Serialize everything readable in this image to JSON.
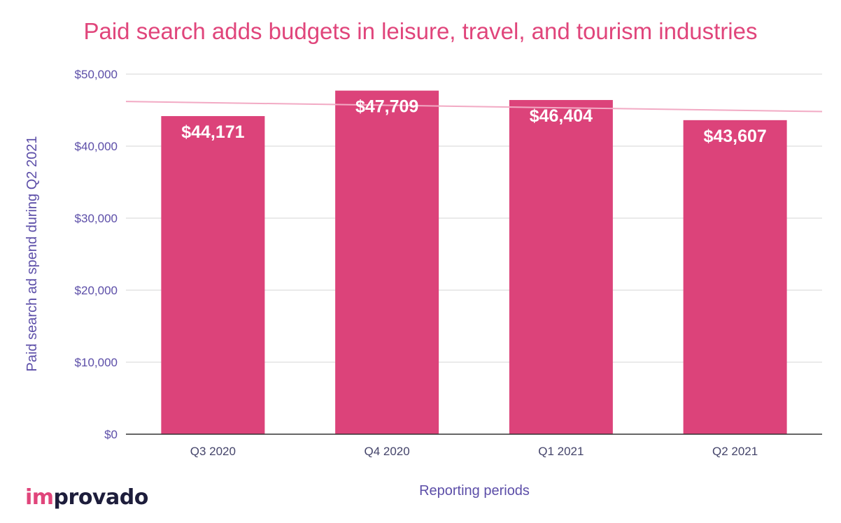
{
  "brand": {
    "logo_text": "improvado",
    "logo_accent_part": "im",
    "logo_rest_part": "provado"
  },
  "colors": {
    "title": "#e0457b",
    "bar": "#dc437a",
    "trendline": "#f2aac4",
    "axis_text": "#5c4ea8",
    "tick_text": "#44446a",
    "gridline": "#d6d6d6",
    "baseline": "#333333",
    "bar_label": "#ffffff"
  },
  "chart_data": {
    "type": "bar",
    "title": "Paid search adds budgets in leisure, travel, and tourism industries",
    "xlabel": "Reporting periods",
    "ylabel": "Paid search ad spend during Q2 2021",
    "categories": [
      "Q3 2020",
      "Q4 2020",
      "Q1 2021",
      "Q2 2021"
    ],
    "series": [
      {
        "values": [
          44171,
          47709,
          46404,
          43607
        ],
        "data_labels": [
          "$44,171",
          "$47,709",
          "$46,404",
          "$43,607"
        ]
      }
    ],
    "ylim": [
      0,
      50000
    ],
    "yticks": [
      0,
      10000,
      20000,
      30000,
      40000,
      50000
    ],
    "ytick_labels": [
      "$0",
      "$10,000",
      "$20,000",
      "$30,000",
      "$40,000",
      "$50,000"
    ],
    "trendline": {
      "type": "linear",
      "start_value": 46200,
      "end_value": 44800
    },
    "grid": true,
    "legend": "none"
  }
}
